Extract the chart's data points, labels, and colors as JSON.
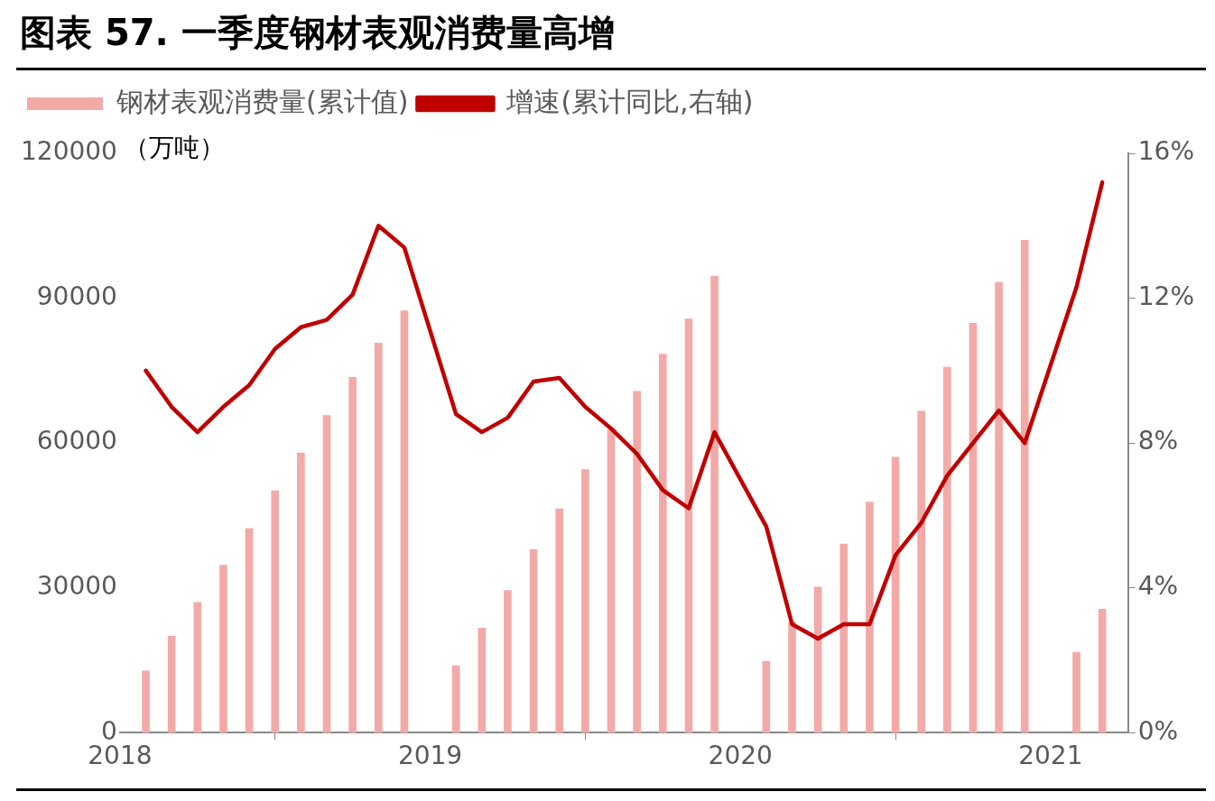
{
  "chart_data": {
    "type": "bar",
    "title": "图表 57. 一季度钢材表观消费量高增",
    "ylabel": "（万吨）",
    "xlim": [
      "2018-01",
      "2021-04"
    ],
    "xticks": [
      {
        "value": "2018-01",
        "label": "2018"
      },
      {
        "value": "2019-01",
        "label": "2019"
      },
      {
        "value": "2020-01",
        "label": "2020"
      },
      {
        "value": "2021-01",
        "label": "2021"
      }
    ],
    "ylim": [
      0,
      120000
    ],
    "yticks": [
      0,
      30000,
      60000,
      90000,
      120000
    ],
    "y2lim": [
      0,
      16
    ],
    "y2ticks": [
      {
        "value": 0,
        "label": "0%"
      },
      {
        "value": 4,
        "label": "4%"
      },
      {
        "value": 8,
        "label": "8%"
      },
      {
        "value": 12,
        "label": "12%"
      },
      {
        "value": 16,
        "label": "16%"
      }
    ],
    "x": [
      "2018-02",
      "2018-03",
      "2018-04",
      "2018-05",
      "2018-06",
      "2018-07",
      "2018-08",
      "2018-09",
      "2018-10",
      "2018-11",
      "2018-12",
      "2019-02",
      "2019-03",
      "2019-04",
      "2019-05",
      "2019-06",
      "2019-07",
      "2019-08",
      "2019-09",
      "2019-10",
      "2019-11",
      "2019-12",
      "2020-02",
      "2020-03",
      "2020-04",
      "2020-05",
      "2020-06",
      "2020-07",
      "2020-08",
      "2020-09",
      "2020-10",
      "2020-11",
      "2020-12",
      "2021-02",
      "2021-03"
    ],
    "series": [
      {
        "name": "钢材表观消费量(累计值)",
        "color": "#f2aaa8",
        "values": [
          12800,
          20000,
          27000,
          34700,
          42300,
          50100,
          57900,
          65700,
          73600,
          80700,
          87400,
          13900,
          21700,
          29500,
          38000,
          46400,
          54500,
          62900,
          70700,
          78400,
          85700,
          94600,
          14800,
          23000,
          30200,
          39100,
          47800,
          57100,
          66600,
          75700,
          84800,
          93300,
          102000,
          16700,
          25600
        ]
      },
      {
        "name": "增速(累计同比,右轴)",
        "type": "line",
        "axis": "y2",
        "color": "#c00000",
        "values": [
          10.0,
          9.0,
          8.3,
          9.0,
          9.6,
          10.6,
          11.2,
          11.4,
          12.1,
          14.0,
          13.4,
          8.8,
          8.3,
          8.7,
          9.7,
          9.8,
          9.0,
          8.4,
          7.7,
          6.7,
          6.2,
          8.3,
          5.7,
          3.0,
          2.6,
          3.0,
          3.0,
          4.9,
          5.8,
          7.1,
          8.0,
          8.9,
          8.0,
          12.3,
          15.2
        ]
      }
    ],
    "grid": false,
    "legend": "top",
    "marker": "none",
    "line_style": "solid"
  }
}
